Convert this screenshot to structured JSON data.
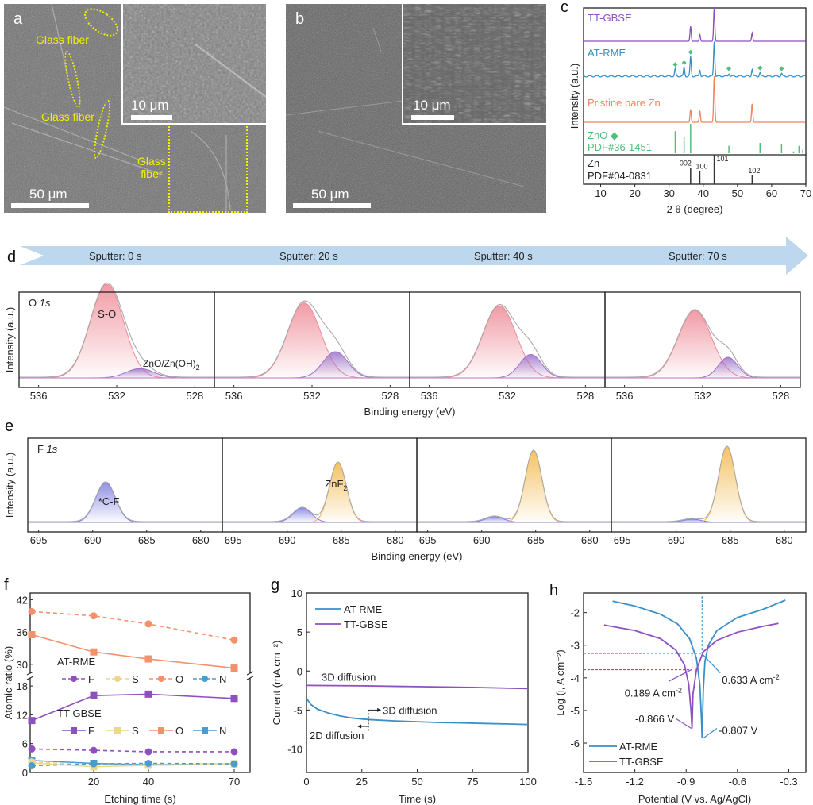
{
  "panels": {
    "a": {
      "letter": "a",
      "scale_main": "50 μm",
      "scale_inset": "10 μm",
      "annotations": [
        "Glass fiber",
        "Glass fiber",
        "Glass\nfiber"
      ],
      "annotation_color": "#f2f000"
    },
    "b": {
      "letter": "b",
      "scale_main": "50 μm",
      "scale_inset": "10 μm"
    },
    "c": {
      "letter": "c"
    },
    "d": {
      "letter": "d"
    },
    "e": {
      "letter": "e"
    },
    "f": {
      "letter": "f"
    },
    "g": {
      "letter": "g"
    },
    "h": {
      "letter": "h"
    }
  },
  "sputter_arrow": {
    "labels": [
      "Sputter: 0 s",
      "Sputter: 20 s",
      "Sputter: 40 s",
      "Sputter: 70 s"
    ],
    "color": "#bcd7ee"
  },
  "chart_data": [
    {
      "id": "c",
      "type": "line",
      "title": "",
      "xlabel": "2 θ (degree)",
      "ylabel": "Intensity (a.u.)",
      "xlim": [
        5,
        70
      ],
      "xticks": [
        10,
        20,
        30,
        40,
        50,
        60,
        70
      ],
      "series": [
        {
          "name": "TT-GBSE",
          "color": "#8e4fbf",
          "peaks": [
            [
              36.3,
              0.45
            ],
            [
              39.0,
              0.2
            ],
            [
              43.2,
              1.0
            ],
            [
              54.3,
              0.25
            ]
          ]
        },
        {
          "name": "AT-RME",
          "color": "#3a8fc8",
          "peaks": [
            [
              31.8,
              0.2
            ],
            [
              34.4,
              0.25
            ],
            [
              36.3,
              0.55
            ],
            [
              39.0,
              0.18
            ],
            [
              43.2,
              1.0
            ],
            [
              47.5,
              0.08
            ],
            [
              54.3,
              0.2
            ],
            [
              56.6,
              0.1
            ],
            [
              62.9,
              0.08
            ]
          ],
          "znO_markers": [
            31.8,
            34.4,
            36.3,
            47.5,
            56.6,
            62.9
          ]
        },
        {
          "name": "Pristine bare Zn",
          "color": "#f0845a",
          "peaks": [
            [
              36.3,
              0.28
            ],
            [
              39.0,
              0.25
            ],
            [
              43.2,
              1.0
            ],
            [
              54.3,
              0.4
            ]
          ]
        }
      ],
      "references": [
        {
          "name": "ZnO ◆",
          "sub": "PDF#36-1451",
          "color": "#4fbf7a",
          "lines": [
            [
              31.8,
              0.75
            ],
            [
              34.4,
              0.55
            ],
            [
              36.3,
              1.0
            ],
            [
              47.5,
              0.25
            ],
            [
              56.6,
              0.35
            ],
            [
              62.9,
              0.3
            ],
            [
              66.4,
              0.06
            ],
            [
              68.0,
              0.25
            ],
            [
              69.1,
              0.12
            ]
          ]
        },
        {
          "name": "Zn",
          "sub": "PDF#04-0831",
          "color": "#333333",
          "lines": [
            [
              36.3,
              0.55,
              "002"
            ],
            [
              39.0,
              0.45,
              "100"
            ],
            [
              43.2,
              1.0,
              "101"
            ],
            [
              54.3,
              0.3,
              "102"
            ]
          ]
        }
      ]
    },
    {
      "id": "d",
      "type": "line",
      "title": "O 1s",
      "xlabel": "Binding energy (eV)",
      "ylabel": "Intensity (a.u.)",
      "xlim": [
        537,
        527
      ],
      "xticks": [
        536,
        532,
        528
      ],
      "subpanels": [
        {
          "sputter_s": 0,
          "peaks": [
            {
              "name": "S-O",
              "center": 532.5,
              "height": 1.0,
              "width": 1.2,
              "color": "#ee8a96"
            },
            {
              "name": "ZnO/Zn(OH)2",
              "center": 530.8,
              "height": 0.1,
              "width": 1.0,
              "color": "#9b6fc8"
            }
          ]
        },
        {
          "sputter_s": 20,
          "peaks": [
            {
              "name": "S-O",
              "center": 532.4,
              "height": 0.8,
              "width": 1.2,
              "color": "#ee8a96"
            },
            {
              "name": "ZnO/Zn(OH)2",
              "center": 530.8,
              "height": 0.28,
              "width": 0.9,
              "color": "#9b6fc8"
            }
          ]
        },
        {
          "sputter_s": 40,
          "peaks": [
            {
              "name": "S-O",
              "center": 532.4,
              "height": 0.77,
              "width": 1.2,
              "color": "#ee8a96"
            },
            {
              "name": "ZnO/Zn(OH)2",
              "center": 530.8,
              "height": 0.25,
              "width": 0.8,
              "color": "#9b6fc8"
            }
          ]
        },
        {
          "sputter_s": 70,
          "peaks": [
            {
              "name": "S-O",
              "center": 532.4,
              "height": 0.72,
              "width": 1.2,
              "color": "#ee8a96"
            },
            {
              "name": "ZnO/Zn(OH)2",
              "center": 530.7,
              "height": 0.22,
              "width": 0.7,
              "color": "#9b6fc8"
            }
          ]
        }
      ],
      "labels": {
        "so": "S-O",
        "zno": "ZnO/Zn(OH)",
        "zno_sub": "2",
        "title_main": "O ",
        "title_ital": "1s"
      }
    },
    {
      "id": "e",
      "type": "line",
      "title": "F 1s",
      "xlabel": "Binding energy (eV)",
      "ylabel": "Intensity (a.u.)",
      "xlim": [
        696,
        678
      ],
      "xticks": [
        695,
        690,
        685,
        680
      ],
      "subpanels": [
        {
          "sputter_s": 0,
          "peaks": [
            {
              "name": "*C-F",
              "center": 688.8,
              "height": 0.5,
              "width": 1.3,
              "color": "#7f7fe0"
            }
          ]
        },
        {
          "sputter_s": 20,
          "peaks": [
            {
              "name": "*C-F",
              "center": 688.6,
              "height": 0.18,
              "width": 1.2,
              "color": "#7f7fe0"
            },
            {
              "name": "ZnF2",
              "center": 685.3,
              "height": 0.75,
              "width": 1.1,
              "color": "#f2b84b"
            }
          ]
        },
        {
          "sputter_s": 40,
          "peaks": [
            {
              "name": "*C-F",
              "center": 688.8,
              "height": 0.07,
              "width": 1.2,
              "color": "#7f7fe0"
            },
            {
              "name": "ZnF2",
              "center": 685.2,
              "height": 0.9,
              "width": 1.1,
              "color": "#f2b84b"
            }
          ]
        },
        {
          "sputter_s": 70,
          "peaks": [
            {
              "name": "*C-F",
              "center": 688.5,
              "height": 0.04,
              "width": 1.2,
              "color": "#7f7fe0"
            },
            {
              "name": "ZnF2",
              "center": 685.3,
              "height": 0.95,
              "width": 1.1,
              "color": "#f2b84b"
            }
          ]
        }
      ],
      "labels": {
        "cf": "*C-F",
        "znf": "ZnF",
        "znf_sub": "2",
        "title_main": "F ",
        "title_ital": "1s"
      }
    },
    {
      "id": "f",
      "type": "line",
      "xlabel": "Etching time (s)",
      "ylabel": "Atomic ratio (%)",
      "x": [
        0,
        20,
        40,
        70
      ],
      "xticks": [
        20,
        40,
        70
      ],
      "yticks_lower": [
        0,
        6,
        12,
        18
      ],
      "yticks_upper": [
        30,
        36,
        42
      ],
      "ylim_lower": [
        0,
        19.5
      ],
      "ylim_upper": [
        28.5,
        42.5
      ],
      "legend": [
        {
          "group": "AT-RME",
          "style": "dashed",
          "marker": "circle",
          "items": [
            "F",
            "S",
            "O",
            "N"
          ]
        },
        {
          "group": "TT-GBSE",
          "style": "solid",
          "marker": "square",
          "items": [
            "F",
            "S",
            "O",
            "N"
          ]
        }
      ],
      "colors": {
        "F": "#8e4fbf",
        "S": "#eed68a",
        "O": "#f4906a",
        "N": "#4a9bd0"
      },
      "series": [
        {
          "name": "AT-RME O",
          "group": "AT-RME",
          "element": "O",
          "values": [
            39.8,
            39.0,
            37.5,
            34.5
          ]
        },
        {
          "name": "TT-GBSE O",
          "group": "TT-GBSE",
          "element": "O",
          "values": [
            35.5,
            32.3,
            31.0,
            29.3
          ]
        },
        {
          "name": "TT-GBSE F",
          "group": "TT-GBSE",
          "element": "F",
          "values": [
            10.8,
            16.0,
            16.3,
            15.4
          ]
        },
        {
          "name": "AT-RME F",
          "group": "AT-RME",
          "element": "F",
          "values": [
            4.9,
            4.6,
            4.3,
            4.3
          ]
        },
        {
          "name": "TT-GBSE N",
          "group": "TT-GBSE",
          "element": "N",
          "values": [
            2.5,
            1.9,
            1.6,
            1.8
          ]
        },
        {
          "name": "TT-GBSE S",
          "group": "TT-GBSE",
          "element": "S",
          "values": [
            2.0,
            1.2,
            1.5,
            1.8
          ]
        },
        {
          "name": "AT-RME S",
          "group": "AT-RME",
          "element": "S",
          "values": [
            2.2,
            1.6,
            1.7,
            1.8
          ]
        },
        {
          "name": "AT-RME N",
          "group": "AT-RME",
          "element": "N",
          "values": [
            1.4,
            1.8,
            1.9,
            1.8
          ]
        }
      ]
    },
    {
      "id": "g",
      "type": "line",
      "xlabel": "Time (s)",
      "ylabel": "Current (mA cm⁻²)",
      "xlim": [
        0,
        100
      ],
      "ylim": [
        -13,
        10
      ],
      "xticks": [
        0,
        25,
        50,
        75,
        100
      ],
      "yticks": [
        -10,
        -5,
        0,
        5,
        10
      ],
      "series": [
        {
          "name": "AT-RME",
          "color": "#3a8fc8",
          "x": [
            0,
            2,
            5,
            10,
            15,
            20,
            25,
            30,
            40,
            50,
            60,
            70,
            80,
            90,
            100
          ],
          "y": [
            -3.5,
            -4.3,
            -4.9,
            -5.4,
            -5.75,
            -6.0,
            -6.15,
            -6.25,
            -6.4,
            -6.5,
            -6.6,
            -6.65,
            -6.72,
            -6.78,
            -6.85
          ]
        },
        {
          "name": "TT-GBSE",
          "color": "#8e4fbf",
          "x": [
            0,
            25,
            50,
            75,
            100
          ],
          "y": [
            -1.85,
            -1.9,
            -2.0,
            -2.1,
            -2.25
          ]
        }
      ],
      "annotations": [
        "3D diffusion",
        "3D diffusion",
        "2D diffusion"
      ],
      "transition_time": 28
    },
    {
      "id": "h",
      "type": "line",
      "xlabel": "Potential (V vs. Ag/AgCl)",
      "ylabel": "Log (i, A cm⁻²)",
      "xlim": [
        -1.5,
        -0.2
      ],
      "ylim": [
        -6.9,
        -1.4
      ],
      "xticks": [
        -1.5,
        -1.2,
        -0.9,
        -0.6,
        -0.3
      ],
      "yticks": [
        -6,
        -5,
        -4,
        -3,
        -2
      ],
      "series": [
        {
          "name": "AT-RME",
          "color": "#3a8fc8",
          "corrosion_potential_V": -0.807,
          "log_i_corr": -3.25,
          "min_log": -5.85,
          "cathodic": [
            [
              -1.33,
              -1.65
            ],
            [
              -1.2,
              -1.8
            ],
            [
              -1.05,
              -2.05
            ],
            [
              -0.95,
              -2.35
            ],
            [
              -0.88,
              -2.8
            ],
            [
              -0.84,
              -3.4
            ],
            [
              -0.82,
              -4.2
            ],
            [
              -0.81,
              -5.3
            ],
            [
              -0.807,
              -5.85
            ]
          ],
          "anodic": [
            [
              -0.807,
              -5.85
            ],
            [
              -0.8,
              -4.4
            ],
            [
              -0.79,
              -3.5
            ],
            [
              -0.77,
              -3.0
            ],
            [
              -0.72,
              -2.55
            ],
            [
              -0.6,
              -2.15
            ],
            [
              -0.45,
              -1.9
            ],
            [
              -0.32,
              -1.62
            ]
          ]
        },
        {
          "name": "TT-GBSE",
          "color": "#8e4fbf",
          "corrosion_potential_V": -0.866,
          "log_i_corr": -3.75,
          "min_log": -5.55,
          "cathodic": [
            [
              -1.38,
              -2.38
            ],
            [
              -1.2,
              -2.55
            ],
            [
              -1.05,
              -2.8
            ],
            [
              -0.96,
              -3.15
            ],
            [
              -0.91,
              -3.6
            ],
            [
              -0.885,
              -4.2
            ],
            [
              -0.872,
              -5.0
            ],
            [
              -0.866,
              -5.55
            ]
          ],
          "anodic": [
            [
              -0.866,
              -5.55
            ],
            [
              -0.86,
              -4.5
            ],
            [
              -0.84,
              -3.75
            ],
            [
              -0.8,
              -3.2
            ],
            [
              -0.72,
              -2.85
            ],
            [
              -0.6,
              -2.6
            ],
            [
              -0.45,
              -2.42
            ],
            [
              -0.36,
              -2.33
            ]
          ]
        }
      ],
      "annotations": {
        "i_atrme": "0.633 A cm",
        "i_ttgbse": "0.189 A cm",
        "sup": "-2",
        "v_atrme": "-0.807 V",
        "v_ttgbse": "-0.866 V"
      }
    }
  ]
}
